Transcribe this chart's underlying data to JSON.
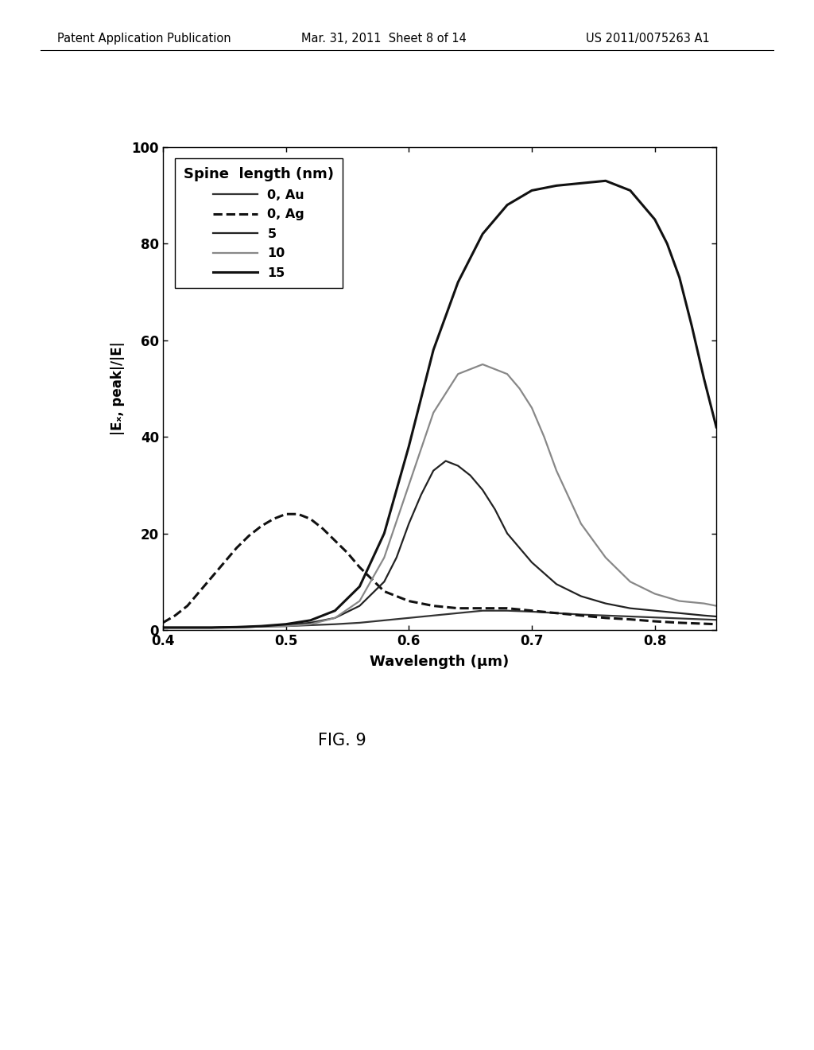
{
  "title": "",
  "xlabel": "Wavelength (μm)",
  "ylabel": "|Eₓ, peak|/|E|",
  "xlim": [
    0.4,
    0.85
  ],
  "ylim": [
    0,
    100
  ],
  "xticks": [
    0.4,
    0.5,
    0.6,
    0.7,
    0.8
  ],
  "yticks": [
    0,
    20,
    40,
    60,
    80,
    100
  ],
  "legend_title": "Spine  length (nm)",
  "background_color": "#ffffff",
  "header_text": "Patent Application Publication",
  "header_date": "Mar. 31, 2011  Sheet 8 of 14",
  "header_patent": "US 2011/0075263 A1",
  "fig_label": "FIG. 9",
  "curves": {
    "Au_0": {
      "label": "0, Au",
      "color": "#333333",
      "linewidth": 1.6,
      "linestyle": "solid",
      "x": [
        0.4,
        0.41,
        0.42,
        0.43,
        0.44,
        0.45,
        0.46,
        0.48,
        0.5,
        0.52,
        0.54,
        0.56,
        0.58,
        0.6,
        0.62,
        0.64,
        0.66,
        0.68,
        0.7,
        0.72,
        0.74,
        0.76,
        0.78,
        0.8,
        0.82,
        0.84,
        0.85
      ],
      "y": [
        0.5,
        0.5,
        0.5,
        0.5,
        0.5,
        0.6,
        0.6,
        0.7,
        0.8,
        1.0,
        1.2,
        1.5,
        2.0,
        2.5,
        3.0,
        3.5,
        4.0,
        4.0,
        3.8,
        3.5,
        3.2,
        3.0,
        2.8,
        2.6,
        2.4,
        2.2,
        2.1
      ]
    },
    "Ag_0": {
      "label": "0, Ag",
      "color": "#111111",
      "linewidth": 2.2,
      "linestyle": "dashed",
      "x": [
        0.4,
        0.41,
        0.42,
        0.43,
        0.44,
        0.45,
        0.46,
        0.47,
        0.48,
        0.49,
        0.5,
        0.51,
        0.52,
        0.53,
        0.54,
        0.55,
        0.56,
        0.57,
        0.58,
        0.6,
        0.62,
        0.64,
        0.66,
        0.68,
        0.7,
        0.72,
        0.74,
        0.76,
        0.78,
        0.8,
        0.82,
        0.84,
        0.85
      ],
      "y": [
        1.5,
        3.0,
        5.0,
        8.0,
        11.0,
        14.0,
        17.0,
        19.5,
        21.5,
        23.0,
        24.0,
        24.0,
        23.0,
        21.0,
        18.5,
        16.0,
        13.0,
        10.5,
        8.0,
        6.0,
        5.0,
        4.5,
        4.5,
        4.5,
        4.0,
        3.5,
        3.0,
        2.5,
        2.2,
        1.8,
        1.5,
        1.3,
        1.2
      ]
    },
    "spine_5": {
      "label": "5",
      "color": "#222222",
      "linewidth": 1.6,
      "linestyle": "solid",
      "x": [
        0.4,
        0.42,
        0.44,
        0.46,
        0.48,
        0.5,
        0.52,
        0.54,
        0.56,
        0.58,
        0.59,
        0.6,
        0.61,
        0.62,
        0.63,
        0.64,
        0.65,
        0.66,
        0.67,
        0.68,
        0.7,
        0.72,
        0.74,
        0.76,
        0.78,
        0.8,
        0.82,
        0.84,
        0.85
      ],
      "y": [
        0.5,
        0.5,
        0.5,
        0.6,
        0.7,
        1.0,
        1.5,
        2.5,
        5.0,
        10.0,
        15.0,
        22.0,
        28.0,
        33.0,
        35.0,
        34.0,
        32.0,
        29.0,
        25.0,
        20.0,
        14.0,
        9.5,
        7.0,
        5.5,
        4.5,
        4.0,
        3.5,
        3.0,
        2.8
      ]
    },
    "spine_10": {
      "label": "10",
      "color": "#888888",
      "linewidth": 1.6,
      "linestyle": "solid",
      "x": [
        0.4,
        0.42,
        0.44,
        0.46,
        0.48,
        0.5,
        0.52,
        0.54,
        0.56,
        0.58,
        0.6,
        0.62,
        0.64,
        0.66,
        0.68,
        0.69,
        0.7,
        0.71,
        0.72,
        0.74,
        0.76,
        0.78,
        0.8,
        0.82,
        0.84,
        0.85
      ],
      "y": [
        0.5,
        0.5,
        0.5,
        0.6,
        0.7,
        0.8,
        1.2,
        2.5,
        6.0,
        15.0,
        30.0,
        45.0,
        53.0,
        55.0,
        53.0,
        50.0,
        46.0,
        40.0,
        33.0,
        22.0,
        15.0,
        10.0,
        7.5,
        6.0,
        5.5,
        5.0
      ]
    },
    "spine_15": {
      "label": "15",
      "color": "#111111",
      "linewidth": 2.2,
      "linestyle": "solid",
      "x": [
        0.4,
        0.42,
        0.44,
        0.46,
        0.48,
        0.5,
        0.52,
        0.54,
        0.56,
        0.58,
        0.6,
        0.62,
        0.64,
        0.66,
        0.68,
        0.7,
        0.72,
        0.74,
        0.76,
        0.78,
        0.8,
        0.81,
        0.82,
        0.83,
        0.84,
        0.85
      ],
      "y": [
        0.5,
        0.5,
        0.5,
        0.6,
        0.8,
        1.2,
        2.0,
        4.0,
        9.0,
        20.0,
        38.0,
        58.0,
        72.0,
        82.0,
        88.0,
        91.0,
        92.0,
        92.5,
        93.0,
        91.0,
        85.0,
        80.0,
        73.0,
        63.0,
        52.0,
        42.0
      ]
    }
  }
}
